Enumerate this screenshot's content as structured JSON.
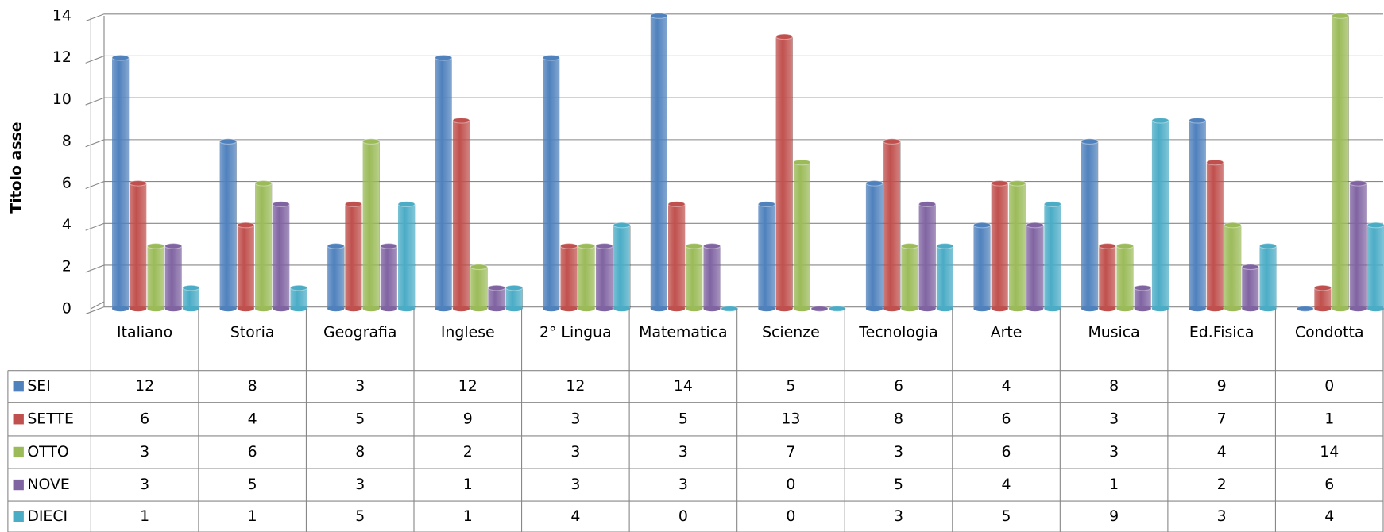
{
  "chart_data": {
    "type": "bar",
    "y_axis_label": "Titolo asse",
    "categories": [
      "Italiano",
      "Storia",
      "Geografia",
      "Inglese",
      "2° Lingua",
      "Matematica",
      "Scienze",
      "Tecnologia",
      "Arte",
      "Musica",
      "Ed.Fisica",
      "Condotta"
    ],
    "series": [
      {
        "name": "SEI",
        "color": "#4f81bd",
        "values": [
          12,
          8,
          3,
          12,
          12,
          14,
          5,
          6,
          4,
          8,
          9,
          0
        ]
      },
      {
        "name": "SETTE",
        "color": "#c0504d",
        "values": [
          6,
          4,
          5,
          9,
          3,
          5,
          13,
          8,
          6,
          3,
          7,
          1
        ]
      },
      {
        "name": "OTTO",
        "color": "#9bbb59",
        "values": [
          3,
          6,
          8,
          2,
          3,
          3,
          7,
          3,
          6,
          3,
          4,
          14
        ]
      },
      {
        "name": "NOVE",
        "color": "#8064a2",
        "values": [
          3,
          5,
          3,
          1,
          3,
          3,
          0,
          5,
          4,
          1,
          2,
          6
        ]
      },
      {
        "name": "DIECI",
        "color": "#4bacc6",
        "values": [
          1,
          1,
          5,
          1,
          4,
          0,
          0,
          3,
          5,
          9,
          3,
          4
        ]
      }
    ],
    "ylim": [
      0,
      14
    ],
    "yticks": [
      0,
      2,
      4,
      6,
      8,
      10,
      12,
      14
    ],
    "grid": true,
    "data_table": true
  }
}
